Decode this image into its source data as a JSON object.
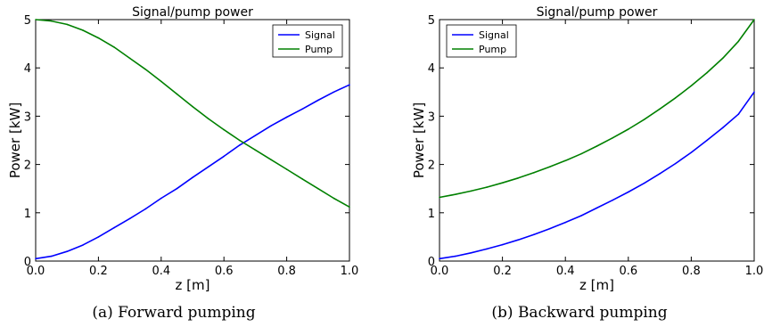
{
  "chart_data": [
    {
      "type": "line",
      "title": "Signal/pump power",
      "xlabel": "z [m]",
      "ylabel": "Power [kW]",
      "xlim": [
        0.0,
        1.0
      ],
      "ylim": [
        0,
        5
      ],
      "xticks": [
        "0.0",
        "0.2",
        "0.4",
        "0.6",
        "0.8",
        "1.0"
      ],
      "yticks": [
        "0",
        "1",
        "2",
        "3",
        "4",
        "5"
      ],
      "grid": false,
      "legend_position": "top-right",
      "caption": "(a) Forward pumping",
      "series": [
        {
          "name": "Signal",
          "color": "#0000ff",
          "x": [
            0.0,
            0.05,
            0.1,
            0.15,
            0.2,
            0.25,
            0.3,
            0.35,
            0.4,
            0.45,
            0.5,
            0.55,
            0.6,
            0.65,
            0.7,
            0.75,
            0.8,
            0.85,
            0.9,
            0.95,
            1.0
          ],
          "y": [
            0.05,
            0.1,
            0.2,
            0.33,
            0.5,
            0.69,
            0.88,
            1.08,
            1.3,
            1.5,
            1.73,
            1.95,
            2.17,
            2.4,
            2.6,
            2.8,
            2.98,
            3.15,
            3.33,
            3.5,
            3.65
          ]
        },
        {
          "name": "Pump",
          "color": "#008000",
          "x": [
            0.0,
            0.05,
            0.1,
            0.15,
            0.2,
            0.25,
            0.3,
            0.35,
            0.4,
            0.45,
            0.5,
            0.55,
            0.6,
            0.65,
            0.7,
            0.75,
            0.8,
            0.85,
            0.9,
            0.95,
            1.0
          ],
          "y": [
            5.0,
            4.97,
            4.9,
            4.78,
            4.62,
            4.43,
            4.2,
            3.97,
            3.72,
            3.46,
            3.2,
            2.95,
            2.72,
            2.5,
            2.3,
            2.1,
            1.9,
            1.7,
            1.5,
            1.3,
            1.12
          ]
        }
      ]
    },
    {
      "type": "line",
      "title": "Signal/pump power",
      "xlabel": "z [m]",
      "ylabel": "Power [kW]",
      "xlim": [
        0.0,
        1.0
      ],
      "ylim": [
        0,
        5
      ],
      "xticks": [
        "0.0",
        "0.2",
        "0.4",
        "0.6",
        "0.8",
        "1.0"
      ],
      "yticks": [
        "0",
        "1",
        "2",
        "3",
        "4",
        "5"
      ],
      "grid": false,
      "legend_position": "top-left",
      "caption": "(b) Backward pumping",
      "series": [
        {
          "name": "Signal",
          "color": "#0000ff",
          "x": [
            0.0,
            0.05,
            0.1,
            0.15,
            0.2,
            0.25,
            0.3,
            0.35,
            0.4,
            0.45,
            0.5,
            0.55,
            0.6,
            0.65,
            0.7,
            0.75,
            0.8,
            0.85,
            0.9,
            0.95,
            1.0
          ],
          "y": [
            0.05,
            0.1,
            0.17,
            0.25,
            0.34,
            0.44,
            0.55,
            0.67,
            0.8,
            0.94,
            1.1,
            1.26,
            1.43,
            1.61,
            1.81,
            2.02,
            2.25,
            2.5,
            2.76,
            3.04,
            3.5
          ]
        },
        {
          "name": "Pump",
          "color": "#008000",
          "x": [
            0.0,
            0.05,
            0.1,
            0.15,
            0.2,
            0.25,
            0.3,
            0.35,
            0.4,
            0.45,
            0.5,
            0.55,
            0.6,
            0.65,
            0.7,
            0.75,
            0.8,
            0.85,
            0.9,
            0.95,
            1.0
          ],
          "y": [
            1.32,
            1.38,
            1.45,
            1.53,
            1.62,
            1.72,
            1.83,
            1.95,
            2.08,
            2.22,
            2.38,
            2.55,
            2.73,
            2.93,
            3.15,
            3.38,
            3.63,
            3.9,
            4.2,
            4.55,
            5.0
          ]
        }
      ]
    }
  ]
}
